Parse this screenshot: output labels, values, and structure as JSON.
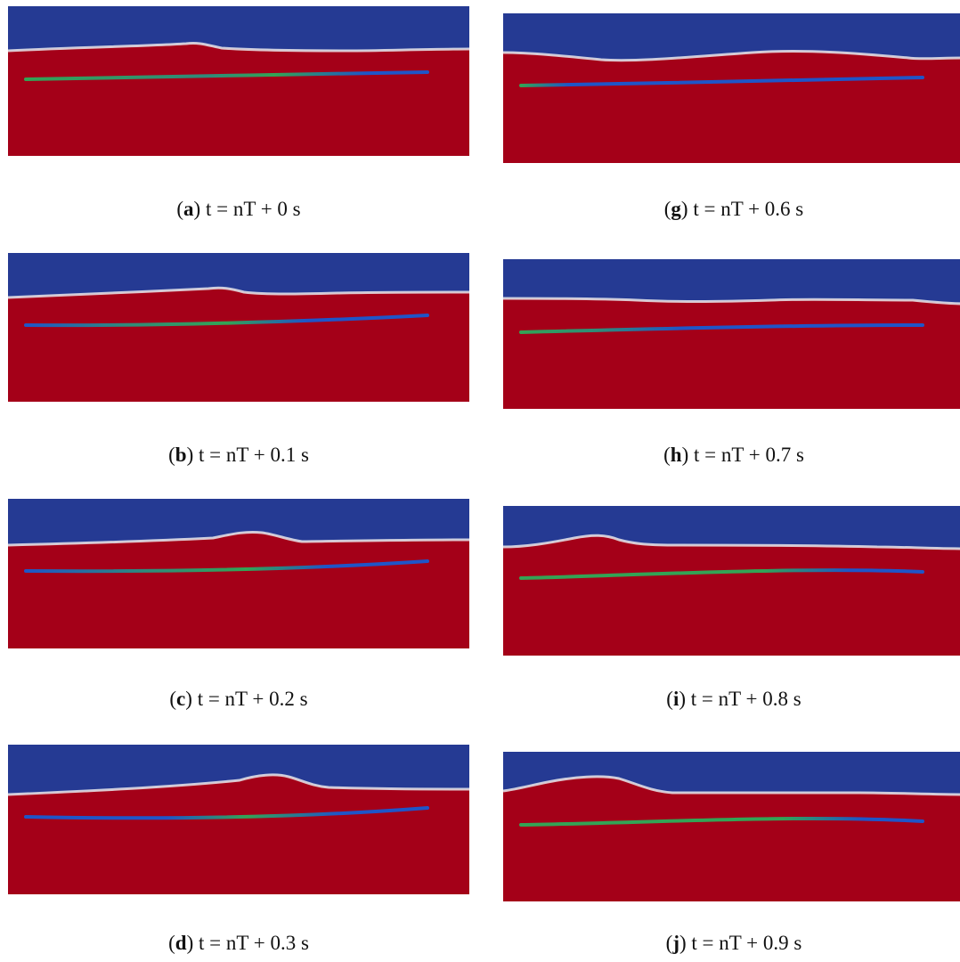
{
  "colors": {
    "air": "#253a93",
    "water": "#a40018",
    "interface_light": "#e9e9ec",
    "beam_blue": "#1f55c8",
    "beam_green": "#33a455"
  },
  "panels": [
    {
      "letter": "a",
      "caption_rest": " t = nT + 0 s"
    },
    {
      "letter": "b",
      "caption_rest": " t = nT + 0.1 s"
    },
    {
      "letter": "c",
      "caption_rest": " t = nT + 0.2 s"
    },
    {
      "letter": "d",
      "caption_rest": " t = nT + 0.3 s"
    },
    {
      "letter": "g",
      "caption_rest": " t = nT + 0.6 s"
    },
    {
      "letter": "h",
      "caption_rest": " t = nT + 0.7 s"
    },
    {
      "letter": "i",
      "caption_rest": " t = nT + 0.8 s"
    },
    {
      "letter": "j",
      "caption_rest": " t = nT + 0.9 s"
    }
  ]
}
